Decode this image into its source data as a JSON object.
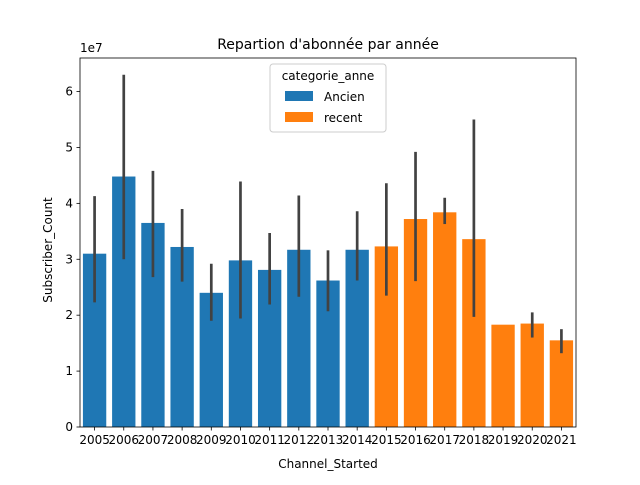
{
  "chart_data": {
    "type": "bar",
    "title": "Repartion d'abonnée par année",
    "xlabel": "Channel_Started",
    "ylabel": "Subscriber_Count",
    "y_offset_label": "1e7",
    "y_scale": 10000000,
    "ylim": [
      0,
      6.6
    ],
    "yticks": [
      0,
      1,
      2,
      3,
      4,
      5,
      6
    ],
    "grid": false,
    "legend": {
      "title": "categorie_anne",
      "placement": "upper center",
      "entries": [
        {
          "name": "Ancien",
          "color": "#1f77b4"
        },
        {
          "name": "recent",
          "color": "#ff7f0e"
        }
      ]
    },
    "categories": [
      "2005",
      "2006",
      "2007",
      "2008",
      "2009",
      "2010",
      "2011",
      "2012",
      "2013",
      "2014",
      "2015",
      "2016",
      "2017",
      "2018",
      "2019",
      "2020",
      "2021"
    ],
    "values": [
      3.1,
      4.48,
      3.65,
      3.22,
      2.4,
      2.98,
      2.81,
      3.17,
      2.62,
      3.17,
      3.23,
      3.72,
      3.84,
      3.36,
      1.83,
      1.85,
      1.55
    ],
    "error_low": [
      2.23,
      3.0,
      2.68,
      2.6,
      1.9,
      1.94,
      2.19,
      2.33,
      2.07,
      2.62,
      2.35,
      2.61,
      3.63,
      1.97,
      null,
      1.6,
      1.32
    ],
    "error_high": [
      4.13,
      6.3,
      4.58,
      3.9,
      2.92,
      4.39,
      3.47,
      4.14,
      3.16,
      3.86,
      4.36,
      4.92,
      4.1,
      5.5,
      null,
      2.05,
      1.75
    ],
    "hue": [
      "Ancien",
      "Ancien",
      "Ancien",
      "Ancien",
      "Ancien",
      "Ancien",
      "Ancien",
      "Ancien",
      "Ancien",
      "Ancien",
      "recent",
      "recent",
      "recent",
      "recent",
      "recent",
      "recent",
      "recent"
    ],
    "colors": {
      "Ancien": "#1f77b4",
      "recent": "#ff7f0e",
      "errorbar": "#424242",
      "axis": "#000000"
    }
  }
}
